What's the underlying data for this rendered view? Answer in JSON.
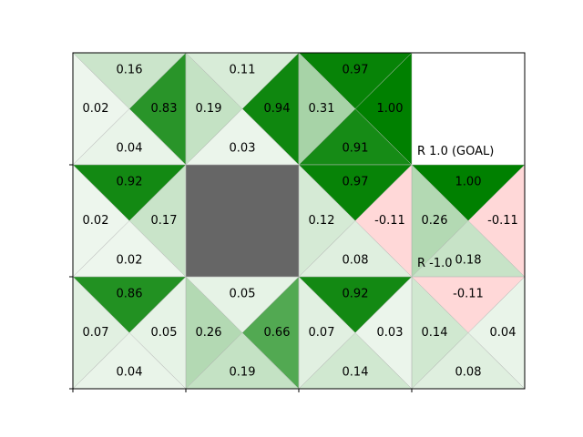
{
  "gridworld": {
    "rows": 3,
    "cols": 4,
    "colors": {
      "positive": "#008000",
      "negative": "#ffb3b3",
      "wall": "#666666",
      "line": "#bbbbbb",
      "border": "#000000"
    },
    "walls": [
      [
        1,
        1
      ]
    ],
    "terminals": [
      {
        "row": 0,
        "col": 3,
        "label": "R 1.0 (GOAL)"
      },
      {
        "row": 1,
        "col": 3,
        "label": "R -1.0"
      }
    ],
    "cells": [
      {
        "row": 0,
        "col": 0,
        "q": {
          "up": "0.16",
          "right": "0.83",
          "down": "0.04",
          "left": "0.02"
        }
      },
      {
        "row": 0,
        "col": 1,
        "q": {
          "up": "0.11",
          "right": "0.94",
          "down": "0.03",
          "left": "0.19"
        }
      },
      {
        "row": 0,
        "col": 2,
        "q": {
          "up": "0.97",
          "right": "1.00",
          "down": "0.91",
          "left": "0.31"
        }
      },
      {
        "row": 1,
        "col": 0,
        "q": {
          "up": "0.92",
          "right": "0.17",
          "down": "0.02",
          "left": "0.02"
        }
      },
      {
        "row": 1,
        "col": 2,
        "q": {
          "up": "0.97",
          "right": "-0.11",
          "down": "0.08",
          "left": "0.12"
        }
      },
      {
        "row": 1,
        "col": 3,
        "q": {
          "up": "1.00",
          "right": "-0.11",
          "down": "0.18",
          "left": "0.26"
        }
      },
      {
        "row": 2,
        "col": 0,
        "q": {
          "up": "0.86",
          "right": "0.05",
          "down": "0.04",
          "left": "0.07"
        }
      },
      {
        "row": 2,
        "col": 1,
        "q": {
          "up": "0.05",
          "right": "0.66",
          "down": "0.19",
          "left": "0.26"
        }
      },
      {
        "row": 2,
        "col": 2,
        "q": {
          "up": "0.92",
          "right": "0.03",
          "down": "0.14",
          "left": "0.07"
        }
      },
      {
        "row": 2,
        "col": 3,
        "q": {
          "up": "-0.11",
          "right": "0.04",
          "down": "0.08",
          "left": "0.14"
        }
      }
    ]
  }
}
